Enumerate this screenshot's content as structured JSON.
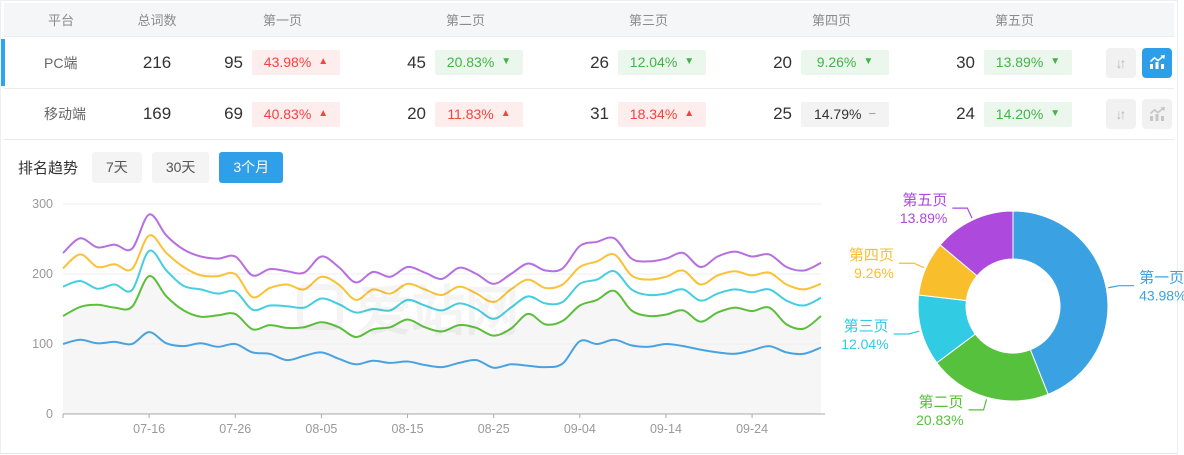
{
  "table": {
    "headers": [
      "平台",
      "总词数",
      "第一页",
      "第二页",
      "第三页",
      "第四页",
      "第五页"
    ],
    "rows": [
      {
        "platform": "PC端",
        "total": "216",
        "selected": true,
        "pages": [
          {
            "count": "95",
            "pct": "43.98%",
            "arrow": "▲",
            "tone": "red"
          },
          {
            "count": "45",
            "pct": "20.83%",
            "arrow": "▼",
            "tone": "green"
          },
          {
            "count": "26",
            "pct": "12.04%",
            "arrow": "▼",
            "tone": "green"
          },
          {
            "count": "20",
            "pct": "9.26%",
            "arrow": "▼",
            "tone": "green"
          },
          {
            "count": "30",
            "pct": "13.89%",
            "arrow": "▼",
            "tone": "green"
          }
        ],
        "chart_button_active": true
      },
      {
        "platform": "移动端",
        "total": "169",
        "selected": false,
        "pages": [
          {
            "count": "69",
            "pct": "40.83%",
            "arrow": "▲",
            "tone": "red"
          },
          {
            "count": "20",
            "pct": "11.83%",
            "arrow": "▲",
            "tone": "red"
          },
          {
            "count": "31",
            "pct": "18.34%",
            "arrow": "▲",
            "tone": "red"
          },
          {
            "count": "25",
            "pct": "14.79%",
            "arrow": "−",
            "tone": "flat"
          },
          {
            "count": "24",
            "pct": "14.20%",
            "arrow": "▼",
            "tone": "green"
          }
        ],
        "chart_button_active": false
      }
    ]
  },
  "trend": {
    "title": "排名趋势",
    "tabs": [
      {
        "label": "7天",
        "active": false
      },
      {
        "label": "30天",
        "active": false
      },
      {
        "label": "3个月",
        "active": true
      }
    ]
  },
  "watermark": "爱站网",
  "colors": {
    "accent_blue": "#2e9fe8",
    "selected_row_bar": "#2fa3ef",
    "badge_red_text": "#f4433c",
    "badge_green_text": "#43b349",
    "axis_text": "#999999",
    "grid_line": "#ededed",
    "area_fill": "#f6f6f6"
  },
  "chart_data": [
    {
      "type": "line",
      "title": "排名趋势 (3个月)",
      "x_tick_labels": [
        "07-16",
        "07-26",
        "08-05",
        "08-15",
        "08-25",
        "09-04",
        "09-14",
        "09-24"
      ],
      "x_tick_days": [
        10,
        20,
        30,
        40,
        50,
        60,
        70,
        80
      ],
      "x_total_days": 88,
      "step_days": 2,
      "y_ticks": [
        0,
        100,
        200,
        300
      ],
      "ylim": [
        0,
        300
      ],
      "grid": true,
      "legend": false,
      "area_under_series_index": 1,
      "series": [
        {
          "color": "#4aa3e0",
          "values": [
            100,
            106,
            101,
            103,
            100,
            117,
            101,
            97,
            101,
            96,
            100,
            88,
            86,
            77,
            83,
            88,
            79,
            71,
            76,
            73,
            75,
            70,
            67,
            73,
            77,
            66,
            71,
            69,
            67,
            72,
            104,
            100,
            106,
            98,
            96,
            100,
            97,
            92,
            88,
            86,
            91,
            97,
            88,
            86,
            95
          ]
        },
        {
          "color": "#5bbf3b",
          "values": [
            140,
            153,
            156,
            152,
            153,
            197,
            168,
            148,
            139,
            141,
            143,
            121,
            127,
            123,
            124,
            131,
            124,
            110,
            121,
            124,
            135,
            124,
            118,
            127,
            123,
            112,
            122,
            143,
            128,
            133,
            155,
            163,
            176,
            148,
            140,
            142,
            148,
            132,
            145,
            152,
            147,
            152,
            128,
            122,
            140
          ]
        },
        {
          "color": "#45cee0",
          "values": [
            182,
            190,
            179,
            185,
            177,
            233,
            205,
            183,
            178,
            172,
            175,
            149,
            155,
            154,
            152,
            165,
            157,
            145,
            150,
            148,
            163,
            155,
            148,
            158,
            150,
            136,
            152,
            168,
            158,
            160,
            186,
            192,
            204,
            178,
            170,
            172,
            178,
            162,
            172,
            178,
            174,
            178,
            162,
            155,
            166
          ]
        },
        {
          "color": "#f9c237",
          "values": [
            208,
            228,
            210,
            214,
            207,
            255,
            230,
            210,
            198,
            197,
            200,
            167,
            180,
            185,
            178,
            196,
            185,
            163,
            178,
            172,
            186,
            178,
            170,
            182,
            172,
            160,
            178,
            192,
            180,
            185,
            210,
            218,
            228,
            198,
            192,
            196,
            205,
            185,
            198,
            204,
            198,
            202,
            185,
            178,
            186
          ]
        },
        {
          "color": "#b76fe0",
          "values": [
            230,
            251,
            238,
            242,
            236,
            285,
            255,
            235,
            225,
            222,
            225,
            198,
            207,
            204,
            202,
            225,
            210,
            188,
            203,
            196,
            210,
            202,
            193,
            209,
            200,
            186,
            200,
            215,
            205,
            208,
            240,
            246,
            251,
            222,
            218,
            222,
            230,
            210,
            225,
            232,
            225,
            228,
            210,
            205,
            216
          ]
        }
      ]
    },
    {
      "type": "pie",
      "donut": true,
      "slices": [
        {
          "label": "第一页",
          "pct_label": "43.98%",
          "value": 43.98,
          "color": "#3aa2e2"
        },
        {
          "label": "第二页",
          "pct_label": "20.83%",
          "value": 20.83,
          "color": "#55c13c"
        },
        {
          "label": "第三页",
          "pct_label": "12.04%",
          "value": 12.04,
          "color": "#31cce3"
        },
        {
          "label": "第四页",
          "pct_label": "9.26%",
          "value": 9.26,
          "color": "#f9be2b"
        },
        {
          "label": "第五页",
          "pct_label": "13.89%",
          "value": 13.89,
          "color": "#ad49dc"
        }
      ]
    }
  ]
}
